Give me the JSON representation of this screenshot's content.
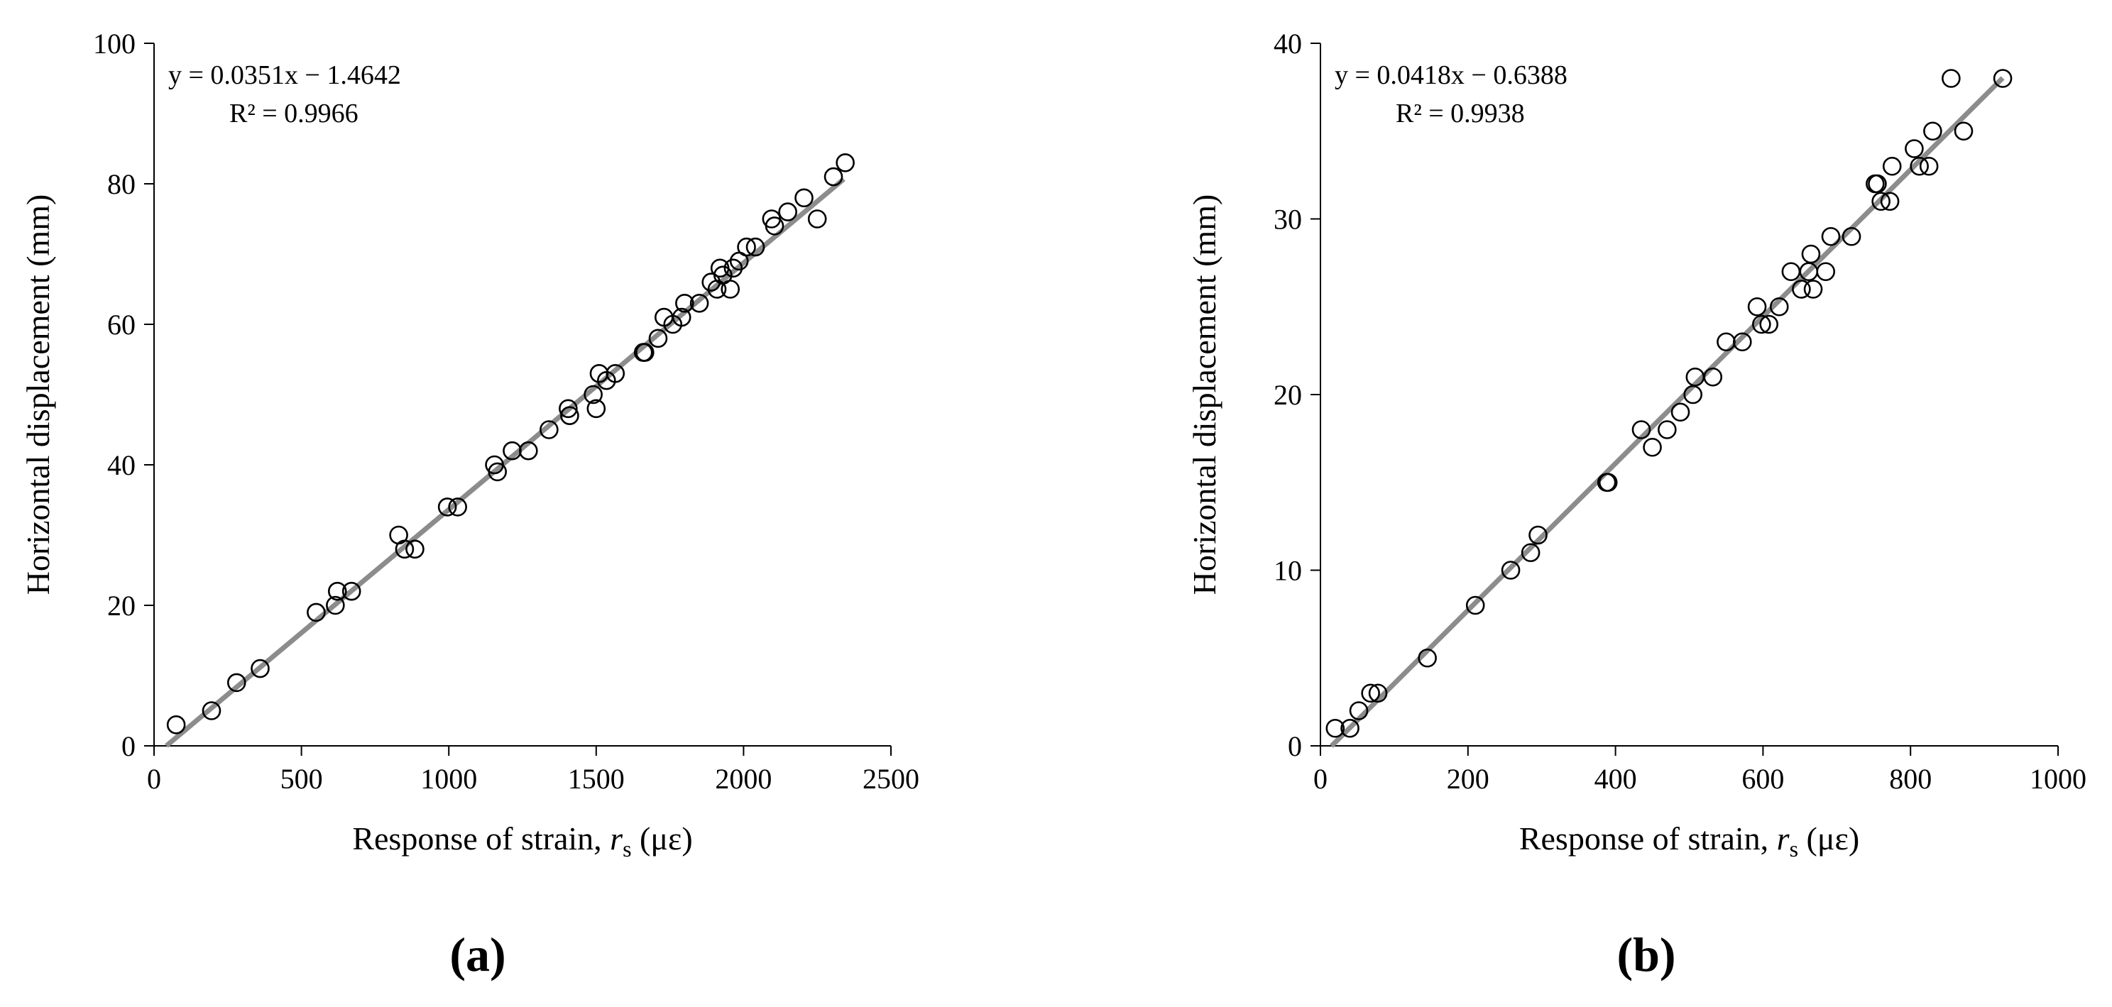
{
  "chart_data": [
    {
      "type": "scatter",
      "panel_label": "(a)",
      "xlabel_prefix": "Response of strain, ",
      "xlabel_var": "r",
      "xlabel_sub": "s",
      "xlabel_unit": " (με)",
      "ylabel": "Horizontal displacement  (mm)",
      "xlim": [
        0,
        2500
      ],
      "ylim": [
        0,
        100
      ],
      "xticks": [
        0,
        500,
        1000,
        1500,
        2000,
        2500
      ],
      "yticks": [
        0,
        20,
        40,
        60,
        80,
        100
      ],
      "xtick_labels": [
        "0",
        "500",
        "1000",
        "1500",
        "2000",
        "2500"
      ],
      "ytick_labels": [
        "0",
        "20",
        "40",
        "60",
        "80",
        "100"
      ],
      "equation": "y = 0.0351x − 1.4642",
      "r_squared": "R² = 0.9966",
      "fit": {
        "slope": 0.0351,
        "intercept": -1.4642,
        "x_range": [
          42,
          2340
        ]
      },
      "points": [
        [
          75,
          3
        ],
        [
          195,
          5
        ],
        [
          280,
          9
        ],
        [
          360,
          11
        ],
        [
          550,
          19
        ],
        [
          615,
          20
        ],
        [
          622,
          22
        ],
        [
          670,
          22
        ],
        [
          830,
          30
        ],
        [
          850,
          28
        ],
        [
          885,
          28
        ],
        [
          995,
          34
        ],
        [
          1030,
          34
        ],
        [
          1155,
          40
        ],
        [
          1165,
          39
        ],
        [
          1215,
          42
        ],
        [
          1270,
          42
        ],
        [
          1340,
          45
        ],
        [
          1405,
          48
        ],
        [
          1410,
          47
        ],
        [
          1490,
          50
        ],
        [
          1500,
          48
        ],
        [
          1510,
          53
        ],
        [
          1535,
          52
        ],
        [
          1565,
          53
        ],
        [
          1660,
          56
        ],
        [
          1665,
          56
        ],
        [
          1710,
          58
        ],
        [
          1730,
          61
        ],
        [
          1760,
          60
        ],
        [
          1790,
          61
        ],
        [
          1800,
          63
        ],
        [
          1850,
          63
        ],
        [
          1890,
          66
        ],
        [
          1910,
          65
        ],
        [
          1920,
          68
        ],
        [
          1930,
          67
        ],
        [
          1955,
          65
        ],
        [
          1965,
          68
        ],
        [
          1985,
          69
        ],
        [
          2010,
          71
        ],
        [
          2040,
          71
        ],
        [
          2095,
          75
        ],
        [
          2105,
          74
        ],
        [
          2150,
          76
        ],
        [
          2205,
          78
        ],
        [
          2250,
          75
        ],
        [
          2305,
          81
        ],
        [
          2345,
          83
        ]
      ]
    },
    {
      "type": "scatter",
      "panel_label": "(b)",
      "xlabel_prefix": "Response of strain, ",
      "xlabel_var": "r",
      "xlabel_sub": "s",
      "xlabel_unit": " (με)",
      "ylabel": "Horizontal displacement  (mm)",
      "xlim": [
        0,
        1000
      ],
      "ylim": [
        0,
        40
      ],
      "xticks": [
        0,
        200,
        400,
        600,
        800,
        1000
      ],
      "yticks": [
        0,
        10,
        20,
        30,
        40
      ],
      "xtick_labels": [
        "0",
        "200",
        "400",
        "600",
        "800",
        "1000"
      ],
      "ytick_labels": [
        "0",
        "10",
        "20",
        "30",
        "40"
      ],
      "equation": "y = 0.0418x − 0.6388",
      "r_squared": "R² = 0.9938",
      "fit": {
        "slope": 0.0418,
        "intercept": -0.6388,
        "x_range": [
          15,
          925
        ]
      },
      "points": [
        [
          20,
          1
        ],
        [
          40,
          1
        ],
        [
          52,
          2
        ],
        [
          68,
          3
        ],
        [
          78,
          3
        ],
        [
          145,
          5
        ],
        [
          210,
          8
        ],
        [
          258,
          10
        ],
        [
          285,
          11
        ],
        [
          295,
          12
        ],
        [
          388,
          15
        ],
        [
          390,
          15
        ],
        [
          435,
          18
        ],
        [
          450,
          17
        ],
        [
          470,
          18
        ],
        [
          488,
          19
        ],
        [
          505,
          20
        ],
        [
          508,
          21
        ],
        [
          532,
          21
        ],
        [
          550,
          23
        ],
        [
          572,
          23
        ],
        [
          592,
          25
        ],
        [
          598,
          24
        ],
        [
          608,
          24
        ],
        [
          622,
          25
        ],
        [
          638,
          27
        ],
        [
          652,
          26
        ],
        [
          662,
          27
        ],
        [
          665,
          28
        ],
        [
          668,
          26
        ],
        [
          685,
          27
        ],
        [
          692,
          29
        ],
        [
          720,
          29
        ],
        [
          752,
          32
        ],
        [
          755,
          32
        ],
        [
          760,
          31
        ],
        [
          772,
          31
        ],
        [
          775,
          33
        ],
        [
          805,
          34
        ],
        [
          812,
          33
        ],
        [
          825,
          33
        ],
        [
          830,
          35
        ],
        [
          855,
          38
        ],
        [
          872,
          35
        ],
        [
          925,
          38
        ]
      ]
    }
  ]
}
